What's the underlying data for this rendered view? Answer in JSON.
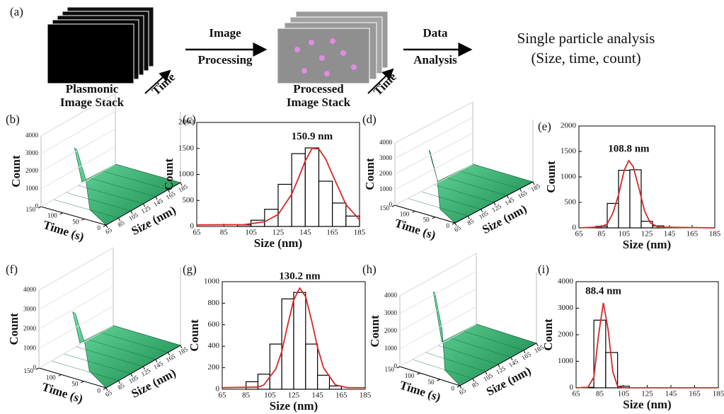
{
  "header": {
    "label": "(a)",
    "stack1": [
      "Plasmonic",
      "Image Stack"
    ],
    "time": "Time",
    "step1": [
      "Image",
      "Processing"
    ],
    "stack2": [
      "Processed",
      "Image Stack"
    ],
    "step2": [
      "Data",
      "Analysis"
    ],
    "result": [
      "Single particle analysis",
      "(Size, time, count)"
    ]
  },
  "chart_data": [
    {
      "type": "surface3d",
      "panel": "(b)",
      "xlabel": "Size (nm)",
      "ylabel": "Time (s)",
      "zlabel": "Count",
      "xlim": [
        65,
        185
      ],
      "xticks": [
        65,
        85,
        105,
        125,
        145,
        165,
        185
      ],
      "ylim": [
        0,
        150
      ],
      "yticks": [
        0,
        50,
        100,
        150
      ],
      "zlim": [
        0,
        4000
      ],
      "zticks": [
        0,
        1000,
        2000,
        3000,
        4000
      ],
      "color": "#2bb673"
    },
    {
      "type": "histogram",
      "panel": "(c)",
      "xlabel": "Size (nm)",
      "ylabel": "Count",
      "annotation": "150.9 nm",
      "bins": [
        95,
        105,
        115,
        125,
        135,
        145,
        155,
        165,
        175,
        185
      ],
      "values": [
        30,
        120,
        330,
        810,
        1400,
        1510,
        870,
        450,
        200
      ],
      "xlim": [
        65,
        185
      ],
      "xticks": [
        65,
        85,
        105,
        125,
        145,
        165,
        185
      ],
      "ylim": [
        0,
        2000
      ],
      "yticks": [
        0,
        500,
        1000,
        1500,
        2000
      ],
      "fit": {
        "color": "#d62728",
        "x": [
          65,
          100,
          115,
          125,
          135,
          140,
          145,
          150,
          155,
          160,
          165,
          175,
          185
        ],
        "values": [
          30,
          35,
          90,
          230,
          620,
          930,
          1260,
          1500,
          1490,
          1300,
          1000,
          420,
          130
        ]
      }
    },
    {
      "type": "surface3d",
      "panel": "(d)",
      "xlabel": "Size (nm)",
      "ylabel": "Time (s)",
      "zlabel": "Count",
      "xlim": [
        65,
        185
      ],
      "xticks": [
        65,
        85,
        105,
        125,
        145,
        165,
        185
      ],
      "ylim": [
        0,
        150
      ],
      "yticks": [
        0,
        50,
        100,
        150
      ],
      "zlim": [
        0,
        4000
      ],
      "zticks": [
        0,
        1000,
        2000,
        3000,
        4000
      ],
      "color": "#2bb673"
    },
    {
      "type": "histogram",
      "panel": "(e)",
      "xlabel": "Size (nm)",
      "ylabel": "Count",
      "annotation": "108.8 nm",
      "bins": [
        80,
        90,
        100,
        110,
        120,
        130,
        140
      ],
      "values": [
        30,
        480,
        1130,
        1140,
        130,
        40
      ],
      "xlim": [
        65,
        185
      ],
      "xticks": [
        65,
        85,
        105,
        125,
        145,
        165,
        185
      ],
      "ylim": [
        0,
        2000
      ],
      "yticks": [
        0,
        500,
        1000,
        1500,
        2000
      ],
      "fit": {
        "color": "#d62728",
        "x": [
          65,
          85,
          90,
          95,
          100,
          105,
          109,
          113,
          118,
          123,
          128,
          135,
          185
        ],
        "values": [
          0,
          20,
          80,
          290,
          650,
          1130,
          1320,
          1200,
          780,
          330,
          100,
          15,
          0
        ]
      }
    },
    {
      "type": "surface3d",
      "panel": "(f)",
      "xlabel": "Size (nm)",
      "ylabel": "Time (s)",
      "zlabel": "Count",
      "xlim": [
        65,
        185
      ],
      "xticks": [
        65,
        85,
        105,
        125,
        145,
        165,
        185
      ],
      "ylim": [
        0,
        150
      ],
      "yticks": [
        0,
        50,
        100,
        150
      ],
      "zlim": [
        0,
        4000
      ],
      "zticks": [
        0,
        1000,
        2000,
        3000,
        4000
      ],
      "color": "#2bb673"
    },
    {
      "type": "histogram",
      "panel": "(g)",
      "xlabel": "Size (nm)",
      "ylabel": "Count",
      "annotation": "130.2 nm",
      "bins": [
        85,
        95,
        105,
        115,
        125,
        135,
        145,
        155,
        165
      ],
      "values": [
        70,
        140,
        420,
        840,
        900,
        420,
        130,
        30
      ],
      "xlim": [
        65,
        185
      ],
      "xticks": [
        65,
        85,
        105,
        125,
        145,
        165,
        185
      ],
      "ylim": [
        0,
        1000
      ],
      "yticks": [
        0,
        200,
        400,
        600,
        800,
        1000
      ],
      "fit": {
        "color": "#d62728",
        "x": [
          65,
          95,
          100,
          110,
          115,
          120,
          125,
          130,
          135,
          140,
          145,
          150,
          160,
          170,
          185
        ],
        "values": [
          15,
          20,
          40,
          190,
          350,
          600,
          830,
          940,
          860,
          640,
          390,
          200,
          40,
          15,
          15
        ]
      }
    },
    {
      "type": "surface3d",
      "panel": "(h)",
      "xlabel": "Size (nm)",
      "ylabel": "Time (s)",
      "zlabel": "Count",
      "xlim": [
        65,
        185
      ],
      "xticks": [
        65,
        85,
        105,
        125,
        145,
        165,
        185
      ],
      "ylim": [
        0,
        150
      ],
      "yticks": [
        0,
        50,
        100,
        150
      ],
      "zlim": [
        0,
        4000
      ],
      "zticks": [
        0,
        1000,
        2000,
        3000,
        4000
      ],
      "color": "#2bb673"
    },
    {
      "type": "histogram",
      "panel": "(i)",
      "xlabel": "Size (nm)",
      "ylabel": "Count",
      "annotation": "88.4 nm",
      "bins": [
        70,
        80,
        90,
        100,
        110
      ],
      "values": [
        20,
        2550,
        1330,
        60
      ],
      "xlim": [
        65,
        185
      ],
      "xticks": [
        65,
        85,
        105,
        125,
        145,
        165,
        185
      ],
      "ylim": [
        0,
        4000
      ],
      "yticks": [
        0,
        1000,
        2000,
        3000,
        4000
      ],
      "fit": {
        "color": "#d62728",
        "x": [
          65,
          75,
          80,
          84,
          88,
          92,
          96,
          100,
          105,
          185
        ],
        "values": [
          0,
          20,
          400,
          2000,
          3200,
          2200,
          600,
          60,
          0,
          0
        ]
      }
    }
  ]
}
